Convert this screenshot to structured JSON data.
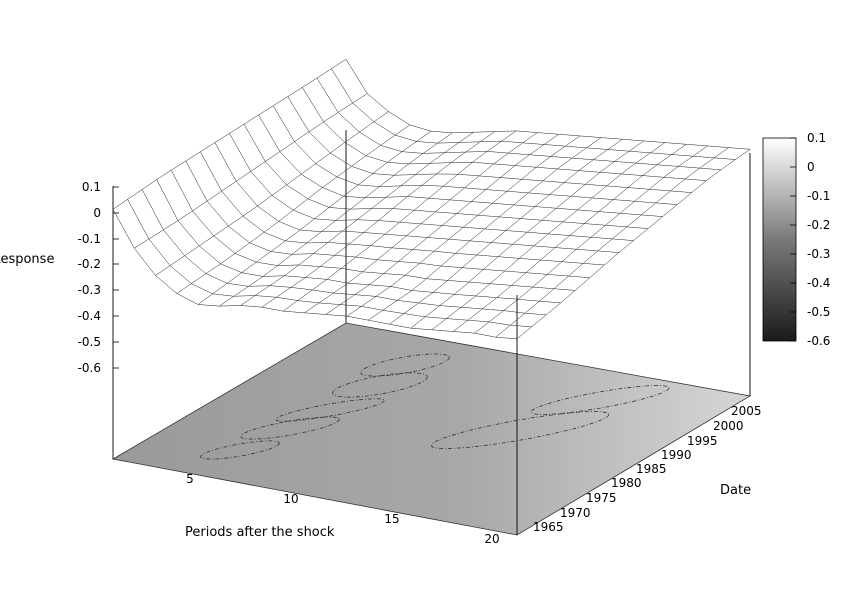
{
  "chart_data": {
    "type": "surface3d",
    "title": "",
    "zlabel": "Response",
    "xlabel": "Periods after the shock",
    "ylabel": "Date",
    "z_ticks": [
      "0.1",
      "0",
      "-0.1",
      "-0.2",
      "-0.3",
      "-0.4",
      "-0.5",
      "-0.6"
    ],
    "x_ticks": [
      "5",
      "10",
      "15",
      "20"
    ],
    "y_ticks": [
      "1965",
      "1970",
      "1975",
      "1980",
      "1985",
      "1990",
      "1995",
      "2000",
      "2005"
    ],
    "colorbar_ticks": [
      "0.1",
      "0",
      "-0.1",
      "-0.2",
      "-0.3",
      "-0.4",
      "-0.5",
      "-0.6"
    ],
    "xlim": [
      1,
      20
    ],
    "ylim": [
      1960,
      2008
    ],
    "zlim": [
      -0.6,
      0.1
    ],
    "colormap": "grayscale",
    "contour_projection": "bottom",
    "x": [
      1,
      2,
      3,
      4,
      5,
      6,
      7,
      8,
      9,
      10,
      11,
      12,
      13,
      14,
      15,
      16,
      17,
      18,
      19,
      20
    ],
    "dates": [
      1960,
      1970,
      1980,
      1990,
      2000,
      2008
    ],
    "z": [
      [
        0.0,
        -0.15,
        -0.25,
        -0.31,
        -0.34,
        -0.33,
        -0.31,
        -0.3,
        -0.3,
        -0.29,
        -0.28,
        -0.27,
        -0.27,
        -0.27,
        -0.27,
        -0.26,
        -0.25,
        -0.24,
        -0.24,
        -0.23
      ],
      [
        0.02,
        -0.14,
        -0.23,
        -0.29,
        -0.31,
        -0.31,
        -0.29,
        -0.28,
        -0.27,
        -0.27,
        -0.26,
        -0.25,
        -0.25,
        -0.24,
        -0.23,
        -0.22,
        -0.21,
        -0.2,
        -0.19,
        -0.18
      ],
      [
        0.03,
        -0.12,
        -0.21,
        -0.26,
        -0.28,
        -0.27,
        -0.25,
        -0.24,
        -0.23,
        -0.22,
        -0.21,
        -0.2,
        -0.19,
        -0.18,
        -0.17,
        -0.16,
        -0.15,
        -0.14,
        -0.13,
        -0.12
      ],
      [
        0.04,
        -0.1,
        -0.18,
        -0.22,
        -0.24,
        -0.23,
        -0.21,
        -0.19,
        -0.18,
        -0.17,
        -0.16,
        -0.15,
        -0.14,
        -0.13,
        -0.12,
        -0.11,
        -0.1,
        -0.09,
        -0.08,
        -0.07
      ],
      [
        0.05,
        -0.08,
        -0.15,
        -0.19,
        -0.2,
        -0.19,
        -0.17,
        -0.15,
        -0.13,
        -0.12,
        -0.11,
        -0.1,
        -0.09,
        -0.08,
        -0.07,
        -0.06,
        -0.05,
        -0.04,
        -0.03,
        -0.02
      ],
      [
        0.06,
        -0.07,
        -0.13,
        -0.17,
        -0.18,
        -0.17,
        -0.15,
        -0.13,
        -0.11,
        -0.1,
        -0.09,
        -0.08,
        -0.07,
        -0.06,
        -0.05,
        -0.04,
        -0.03,
        -0.02,
        -0.01,
        0.0
      ]
    ]
  },
  "colors": {
    "mesh": "#222222",
    "floor_light": "#d8d8d8",
    "floor_dark": "#8a8a8a"
  }
}
